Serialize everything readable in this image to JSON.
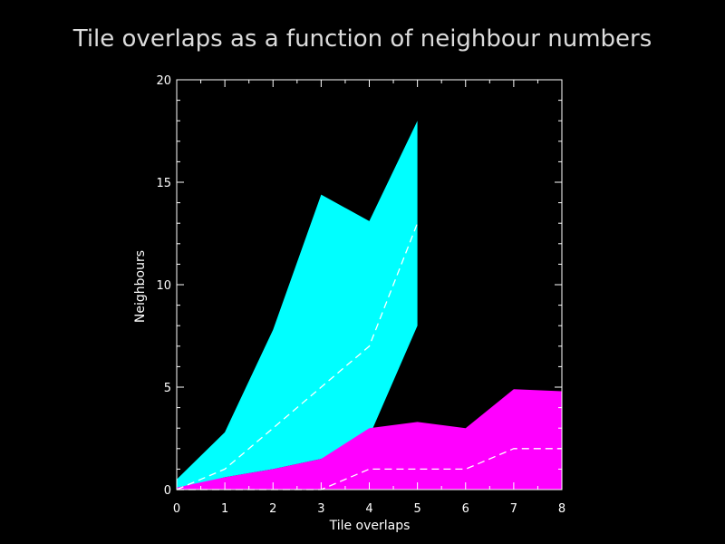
{
  "title": "Tile overlaps as a function of neighbour numbers",
  "chart_data": {
    "type": "area",
    "xlabel": "Tile overlaps",
    "ylabel": "Neighbours",
    "xlim": [
      0,
      8
    ],
    "ylim": [
      0,
      20
    ],
    "xticks": [
      0,
      1,
      2,
      3,
      4,
      5,
      6,
      7,
      8
    ],
    "yticks": [
      0,
      5,
      10,
      15,
      20
    ],
    "grid": false,
    "colors": {
      "series_a": "#00ffff",
      "series_b": "#ff00ff",
      "median_line": "#ffffff",
      "axis": "#ffffff"
    },
    "series": [
      {
        "color": "#00ffff",
        "x": [
          0,
          1,
          2,
          3,
          4,
          5
        ],
        "upper": [
          0.5,
          2.8,
          7.8,
          14.4,
          13.1,
          18.0
        ],
        "lower": [
          0.0,
          0.6,
          1.0,
          1.5,
          2.6,
          8.0
        ],
        "median": [
          0,
          1,
          3,
          5,
          7,
          13
        ]
      },
      {
        "color": "#ff00ff",
        "x": [
          0,
          1,
          2,
          3,
          4,
          5,
          6,
          7,
          8
        ],
        "upper": [
          0.1,
          0.6,
          1.0,
          1.5,
          3.0,
          3.3,
          3.0,
          4.9,
          4.8
        ],
        "lower": [
          0,
          0,
          0,
          0,
          0,
          0,
          0,
          0,
          0
        ],
        "median": [
          0,
          0,
          0,
          0,
          1,
          1,
          1,
          2,
          2
        ]
      }
    ]
  }
}
